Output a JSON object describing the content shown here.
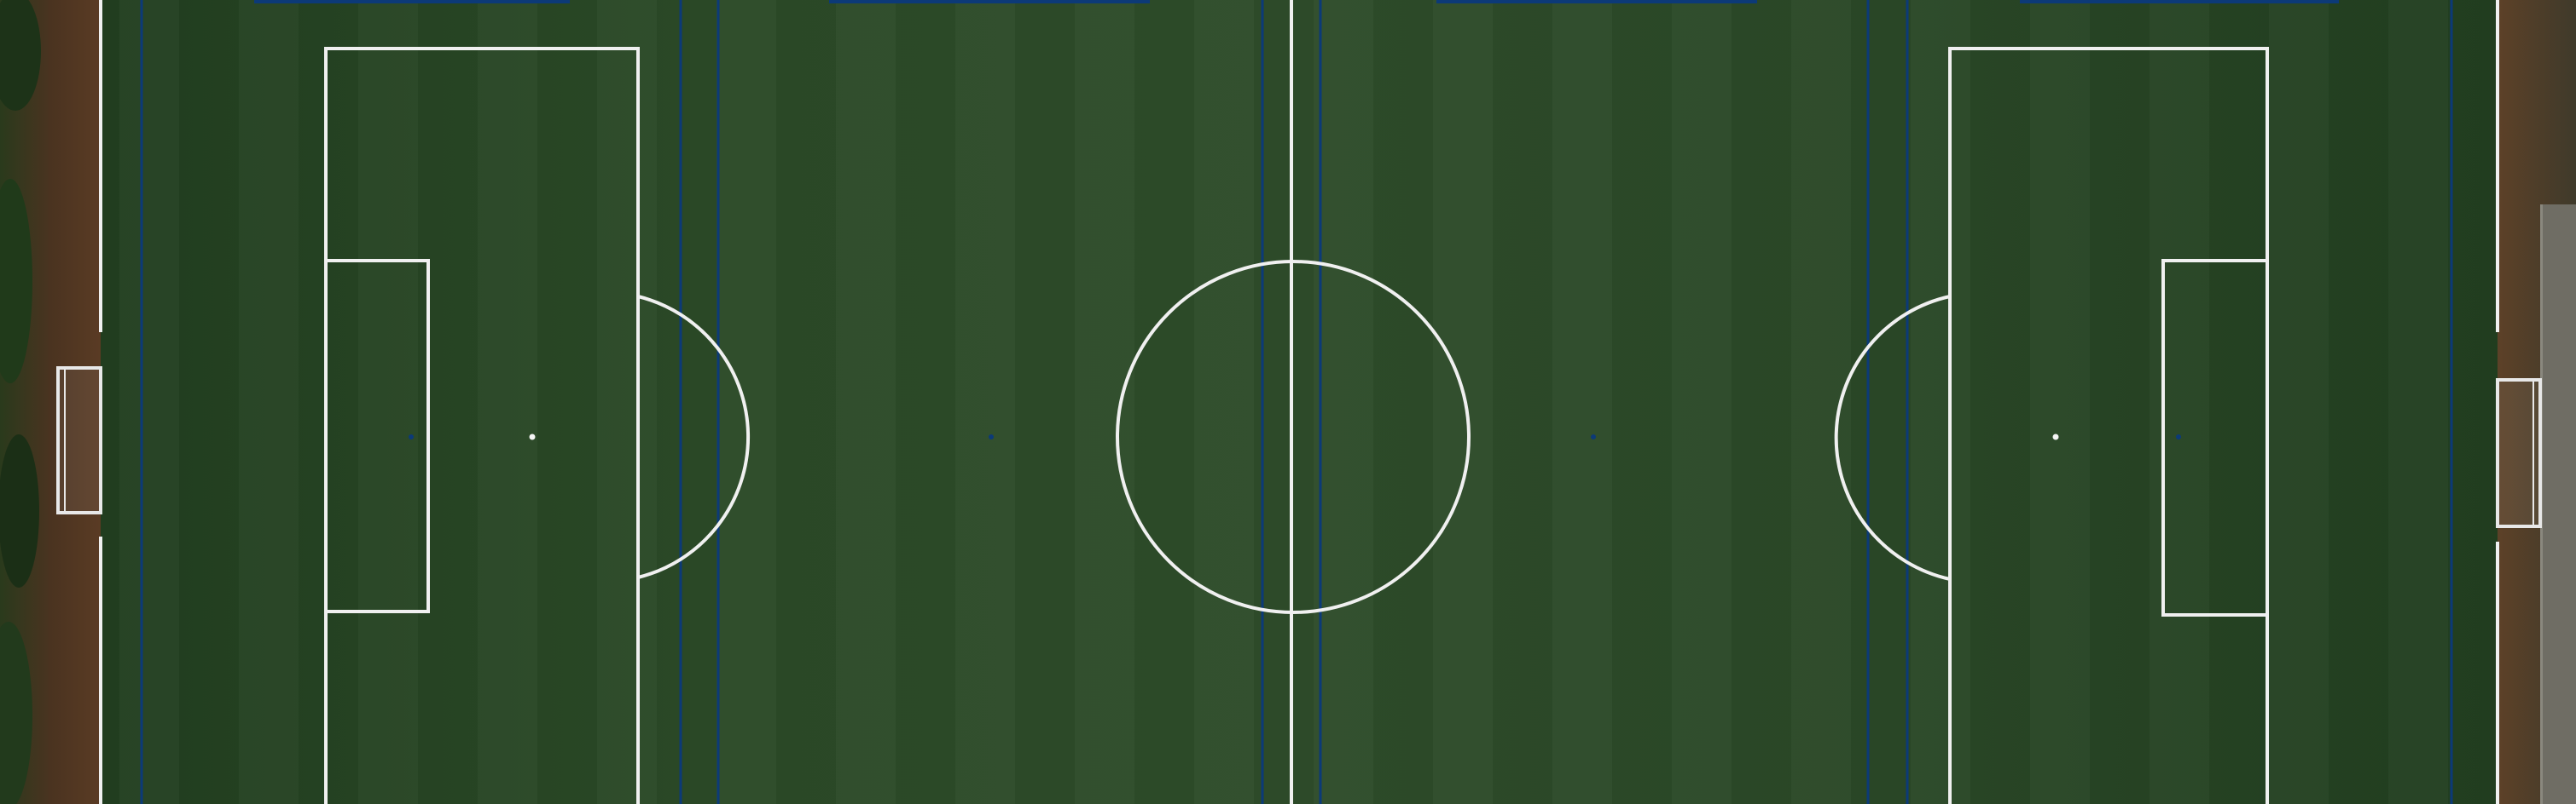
{
  "scene": {
    "subject": "soccer-pitch-aerial",
    "colors": {
      "grass_dark": "#1f3d1f",
      "grass_mid": "#2b4a28",
      "grass_light": "#355a30",
      "line_white": "#f2f2f2",
      "line_blue": "#0b3a78",
      "soil": "#5a3a22",
      "trees": "#1d3318",
      "walkway": "#6b6a62"
    }
  }
}
